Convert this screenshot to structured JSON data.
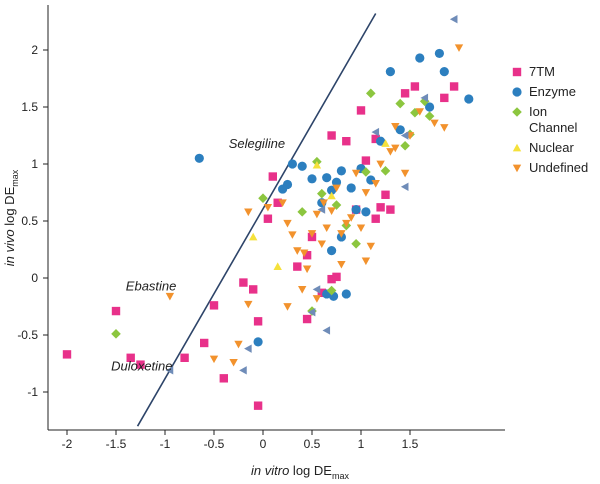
{
  "chart_data": {
    "type": "scatter",
    "title": "",
    "xlabel": {
      "italic": "in vitro",
      "main": " log DE",
      "sub": "max"
    },
    "ylabel": {
      "italic": "in vivo",
      "main": " log DE",
      "sub": "max"
    },
    "xlim": [
      -2.2,
      2.3
    ],
    "ylim": [
      -1.3,
      2.35
    ],
    "x_ticks": [
      -2,
      -1.5,
      -1,
      -0.5,
      0,
      0.5,
      1,
      1.5
    ],
    "x_tick_labels": [
      "-2",
      "-1.5",
      "-1",
      "-0.5",
      "0",
      "0.5",
      "1",
      "1.5"
    ],
    "y_ticks": [
      -1,
      -0.5,
      0,
      0.5,
      1,
      1.5,
      2
    ],
    "y_tick_labels": [
      "-1",
      "-0.5",
      "0",
      "0.5",
      "1",
      "1.5",
      "2"
    ],
    "grid": false,
    "legend_position": "right",
    "fit_line": {
      "x": [
        -1.28,
        1.15
      ],
      "y": [
        -1.3,
        2.32
      ]
    },
    "annotations": [
      {
        "text": "Selegiline",
        "x": -0.35,
        "y": 1.14
      },
      {
        "text": "Ebastine",
        "x": -1.4,
        "y": -0.11
      },
      {
        "text": "Duloxetine",
        "x": -1.55,
        "y": -0.81
      }
    ],
    "series": [
      {
        "name": "7TM",
        "legend_label": "7TM",
        "marker": "square",
        "color": "#e8318a",
        "points": [
          [
            -1.5,
            -0.29
          ],
          [
            -2.0,
            -0.67
          ],
          [
            -1.35,
            -0.7
          ],
          [
            -1.25,
            -0.76
          ],
          [
            -0.8,
            -0.7
          ],
          [
            -0.6,
            -0.57
          ],
          [
            -0.4,
            -0.88
          ],
          [
            -0.05,
            -1.12
          ],
          [
            -0.5,
            -0.24
          ],
          [
            -0.1,
            -0.1
          ],
          [
            -0.2,
            -0.04
          ],
          [
            -0.05,
            -0.38
          ],
          [
            0.05,
            0.52
          ],
          [
            0.1,
            0.89
          ],
          [
            0.15,
            0.66
          ],
          [
            0.35,
            0.1
          ],
          [
            0.45,
            0.2
          ],
          [
            0.5,
            0.36
          ],
          [
            0.6,
            -0.13
          ],
          [
            0.45,
            -0.36
          ],
          [
            0.7,
            -0.01
          ],
          [
            0.75,
            0.01
          ],
          [
            0.7,
            1.25
          ],
          [
            0.85,
            1.2
          ],
          [
            1.0,
            1.47
          ],
          [
            1.05,
            1.03
          ],
          [
            1.15,
            1.22
          ],
          [
            1.15,
            0.52
          ],
          [
            1.2,
            0.62
          ],
          [
            1.25,
            0.73
          ],
          [
            1.3,
            0.6
          ],
          [
            1.45,
            1.62
          ],
          [
            1.55,
            1.68
          ],
          [
            1.85,
            1.58
          ],
          [
            1.95,
            1.68
          ],
          [
            0.95,
            0.6
          ]
        ]
      },
      {
        "name": "Enzyme",
        "legend_label": "Enzyme",
        "marker": "circle",
        "color": "#2c7fbf",
        "points": [
          [
            -0.65,
            1.05
          ],
          [
            -0.05,
            -0.56
          ],
          [
            0.2,
            0.78
          ],
          [
            0.25,
            0.82
          ],
          [
            0.3,
            1.0
          ],
          [
            0.4,
            0.98
          ],
          [
            0.5,
            0.87
          ],
          [
            0.6,
            0.66
          ],
          [
            0.65,
            0.88
          ],
          [
            0.7,
            0.77
          ],
          [
            0.75,
            0.84
          ],
          [
            0.8,
            0.94
          ],
          [
            0.9,
            0.79
          ],
          [
            1.0,
            0.96
          ],
          [
            1.1,
            0.86
          ],
          [
            1.2,
            1.2
          ],
          [
            1.3,
            1.81
          ],
          [
            1.4,
            1.3
          ],
          [
            1.6,
            1.93
          ],
          [
            1.7,
            1.5
          ],
          [
            1.8,
            1.97
          ],
          [
            1.85,
            1.81
          ],
          [
            2.1,
            1.57
          ],
          [
            0.8,
            0.36
          ],
          [
            0.95,
            0.6
          ],
          [
            0.65,
            -0.14
          ],
          [
            0.72,
            -0.16
          ],
          [
            0.85,
            -0.14
          ],
          [
            0.7,
            0.24
          ],
          [
            1.05,
            0.58
          ]
        ]
      },
      {
        "name": "Ion Channel",
        "legend_label": [
          "Ion",
          "Channel"
        ],
        "marker": "diamond",
        "color": "#8cc63f",
        "points": [
          [
            -1.5,
            -0.49
          ],
          [
            0.0,
            0.7
          ],
          [
            0.4,
            0.58
          ],
          [
            0.6,
            0.74
          ],
          [
            0.85,
            0.46
          ],
          [
            1.05,
            0.93
          ],
          [
            1.25,
            0.94
          ],
          [
            1.4,
            1.53
          ],
          [
            1.45,
            1.16
          ],
          [
            1.55,
            1.45
          ],
          [
            1.65,
            1.55
          ],
          [
            1.7,
            1.42
          ],
          [
            1.5,
            1.26
          ],
          [
            0.95,
            0.3
          ],
          [
            0.75,
            0.64
          ],
          [
            1.1,
            1.62
          ],
          [
            0.55,
            1.02
          ],
          [
            0.7,
            -0.11
          ],
          [
            0.5,
            -0.29
          ]
        ]
      },
      {
        "name": "Nuclear",
        "legend_label": "Nuclear",
        "marker": "triangle-up",
        "color": "#f5e13b",
        "points": [
          [
            -0.1,
            0.36
          ],
          [
            0.15,
            0.1
          ],
          [
            0.55,
            0.99
          ],
          [
            0.7,
            0.72
          ],
          [
            1.25,
            1.18
          ]
        ]
      },
      {
        "name": "Undefined",
        "legend_label": "Undefined",
        "marker": "triangle-down",
        "color": "#f2922d",
        "points": [
          [
            -0.95,
            -0.16
          ],
          [
            -0.5,
            -0.71
          ],
          [
            -0.3,
            -0.74
          ],
          [
            -0.25,
            -0.58
          ],
          [
            -0.15,
            0.58
          ],
          [
            0.05,
            0.62
          ],
          [
            0.2,
            0.66
          ],
          [
            0.25,
            0.48
          ],
          [
            0.3,
            0.38
          ],
          [
            0.35,
            0.24
          ],
          [
            0.4,
            -0.1
          ],
          [
            0.42,
            0.22
          ],
          [
            0.45,
            0.08
          ],
          [
            0.5,
            0.39
          ],
          [
            0.55,
            0.56
          ],
          [
            0.6,
            0.3
          ],
          [
            0.62,
            0.66
          ],
          [
            0.65,
            0.44
          ],
          [
            0.7,
            0.59
          ],
          [
            0.75,
            0.79
          ],
          [
            0.8,
            0.39
          ],
          [
            0.85,
            0.48
          ],
          [
            0.9,
            0.53
          ],
          [
            0.95,
            0.92
          ],
          [
            1.0,
            0.44
          ],
          [
            1.05,
            0.15
          ],
          [
            1.1,
            0.28
          ],
          [
            1.15,
            0.83
          ],
          [
            1.2,
            1.0
          ],
          [
            1.3,
            1.11
          ],
          [
            1.35,
            1.33
          ],
          [
            1.45,
            0.92
          ],
          [
            1.5,
            1.25
          ],
          [
            1.6,
            1.46
          ],
          [
            1.75,
            1.36
          ],
          [
            1.85,
            1.32
          ],
          [
            2.0,
            2.02
          ],
          [
            -0.15,
            -0.23
          ],
          [
            0.25,
            -0.25
          ],
          [
            0.55,
            -0.18
          ],
          [
            0.8,
            0.12
          ],
          [
            1.05,
            0.75
          ],
          [
            1.35,
            1.14
          ]
        ]
      },
      {
        "name": "Unlabeled",
        "legend_label": "",
        "marker": "triangle-left",
        "color": "#6f8cb8",
        "points": [
          [
            -0.95,
            -0.81
          ],
          [
            -0.2,
            -0.81
          ],
          [
            -0.15,
            -0.62
          ],
          [
            0.6,
            0.6
          ],
          [
            0.5,
            -0.3
          ],
          [
            0.65,
            -0.46
          ],
          [
            0.55,
            -0.1
          ],
          [
            1.15,
            1.28
          ],
          [
            1.45,
            0.8
          ],
          [
            1.65,
            1.58
          ],
          [
            1.95,
            2.27
          ],
          [
            1.45,
            1.25
          ]
        ]
      }
    ]
  }
}
